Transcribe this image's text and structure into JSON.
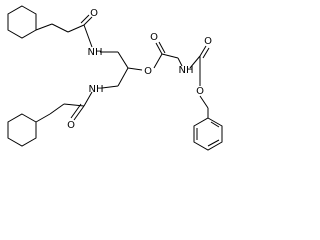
{
  "atoms": [
    {
      "label": "O"
    },
    {
      "label": "NH"
    },
    {
      "label": "NH"
    },
    {
      "label": "O"
    },
    {
      "label": "O"
    },
    {
      "label": "O"
    },
    {
      "label": "NH"
    },
    {
      "label": "O"
    },
    {
      "label": "O"
    }
  ]
}
